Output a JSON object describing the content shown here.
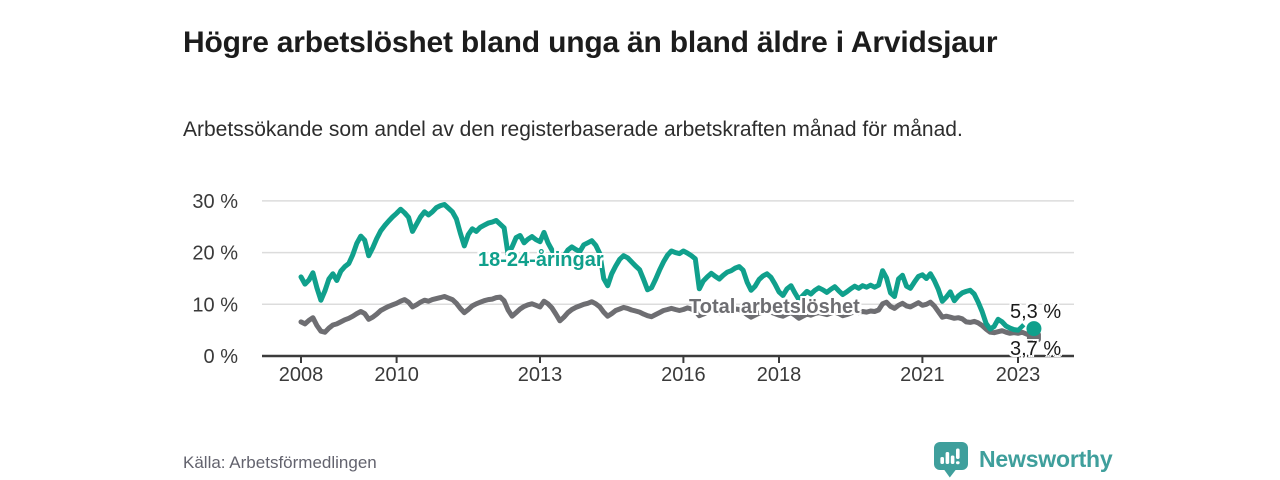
{
  "header": {
    "title": "Högre arbetslöshet bland unga än bland äldre i Arvidsjaur",
    "subtitle": "Arbetssökande som andel av den registerbaserade arbetskraften månad för månad."
  },
  "footer": {
    "source": "Källa: Arbetsförmedlingen",
    "brand": "Newsworthy"
  },
  "colors": {
    "young_line": "#10a08c",
    "total_line": "#6e6e72",
    "grid": "#dcdcdc",
    "axis": "#3b3b3b",
    "axis_text": "#3a3a3a",
    "title_text": "#1c1c1c",
    "brand_teal": "#3f9f9c"
  },
  "chart_data": {
    "type": "line",
    "title": "Högre arbetslöshet bland unga än bland äldre i Arvidsjaur",
    "subtitle": "Arbetssökande som andel av den registerbaserade arbetskraften månad för månad.",
    "xlabel": "",
    "ylabel": "",
    "x_start_year": 2008,
    "x_step_months": 1,
    "x_ticks": [
      2008,
      2010,
      2013,
      2016,
      2018,
      2021,
      2023
    ],
    "y_ticks": [
      0,
      10,
      20,
      30
    ],
    "y_tick_labels": [
      "0 %",
      "10 %",
      "20 %",
      "30 %"
    ],
    "ylim": [
      0,
      32
    ],
    "grid": true,
    "legend_position": "inline-labels",
    "series": [
      {
        "name": "18-24-åringar",
        "color": "#10a08c",
        "end_label": "5,3 %",
        "end_value": 5.3,
        "marker": "circle",
        "dash_tail_segments": 4,
        "values": [
          15.3,
          13.9,
          14.7,
          16.1,
          13.2,
          10.8,
          12.6,
          14.9,
          15.9,
          14.6,
          16.4,
          17.3,
          17.9,
          19.6,
          21.8,
          23.2,
          22.4,
          19.4,
          20.9,
          22.7,
          24.2,
          25.2,
          26.1,
          26.9,
          27.6,
          28.4,
          27.7,
          26.8,
          24.1,
          25.5,
          26.9,
          27.9,
          27.3,
          27.9,
          28.7,
          29.1,
          29.3,
          28.6,
          27.9,
          26.5,
          23.8,
          21.3,
          23.5,
          24.6,
          24.1,
          24.9,
          25.3,
          25.7,
          25.9,
          26.2,
          25.5,
          24.8,
          19.6,
          21.1,
          22.9,
          23.3,
          21.9,
          22.6,
          23.1,
          22.5,
          22.1,
          23.9,
          21.9,
          20.5,
          19.2,
          17.8,
          19.3,
          20.5,
          21.1,
          20.6,
          20.2,
          21.5,
          21.9,
          22.3,
          21.4,
          19.8,
          15.0,
          13.6,
          15.9,
          17.4,
          18.7,
          19.4,
          19.0,
          18.2,
          17.4,
          16.7,
          14.8,
          12.8,
          13.2,
          14.8,
          16.6,
          18.2,
          19.5,
          20.3,
          20.0,
          19.8,
          20.3,
          19.9,
          19.4,
          18.8,
          13.0,
          14.5,
          15.3,
          16.0,
          15.4,
          14.9,
          15.6,
          16.2,
          16.5,
          17.0,
          17.3,
          16.6,
          14.3,
          12.7,
          13.5,
          14.8,
          15.5,
          15.9,
          15.2,
          13.9,
          12.4,
          11.7,
          13.0,
          13.6,
          12.2,
          10.9,
          11.7,
          12.5,
          12.0,
          12.7,
          13.2,
          12.8,
          12.3,
          12.9,
          13.4,
          12.6,
          11.9,
          12.4,
          13.0,
          13.5,
          13.1,
          13.6,
          13.3,
          13.7,
          13.3,
          13.7,
          16.5,
          15.1,
          12.2,
          11.5,
          14.9,
          15.6,
          13.5,
          13.1,
          14.3,
          15.4,
          15.7,
          15.0,
          15.9,
          14.6,
          12.9,
          10.6,
          11.4,
          12.4,
          10.7,
          11.6,
          12.2,
          12.5,
          12.7,
          12.0,
          10.4,
          8.6,
          6.3,
          5.2,
          5.7,
          7.1,
          6.6,
          5.8,
          5.4,
          5.1,
          5.0,
          5.7,
          6.5,
          6.1,
          5.3
        ]
      },
      {
        "name": "Total arbetslöshet",
        "color": "#6e6e72",
        "end_label": "3,7 %",
        "end_value": 3.7,
        "marker": "square",
        "dash_tail_segments": 0,
        "values": [
          6.6,
          6.2,
          6.9,
          7.4,
          5.9,
          4.8,
          4.6,
          5.4,
          6.0,
          6.2,
          6.6,
          7.0,
          7.3,
          7.7,
          8.2,
          8.6,
          8.2,
          7.1,
          7.5,
          8.1,
          8.8,
          9.2,
          9.6,
          9.9,
          10.2,
          10.6,
          10.9,
          10.4,
          9.5,
          9.9,
          10.4,
          10.8,
          10.6,
          10.9,
          11.1,
          11.3,
          11.5,
          11.2,
          10.9,
          10.2,
          9.2,
          8.4,
          9.0,
          9.7,
          10.1,
          10.4,
          10.7,
          10.9,
          11.0,
          11.3,
          11.4,
          10.7,
          8.9,
          7.7,
          8.4,
          9.1,
          9.6,
          9.9,
          10.1,
          9.8,
          9.5,
          10.6,
          10.1,
          9.3,
          8.1,
          6.8,
          7.5,
          8.4,
          9.0,
          9.4,
          9.7,
          10.0,
          10.2,
          10.5,
          10.1,
          9.5,
          8.5,
          7.7,
          8.2,
          8.8,
          9.1,
          9.4,
          9.2,
          8.9,
          8.7,
          8.5,
          8.1,
          7.8,
          7.6,
          8.0,
          8.4,
          8.8,
          9.0,
          9.2,
          9.0,
          8.8,
          9.0,
          9.3,
          9.1,
          8.7,
          7.8,
          8.1,
          8.5,
          8.8,
          8.6,
          8.4,
          8.6,
          8.8,
          8.9,
          9.1,
          9.0,
          8.6,
          8.0,
          7.5,
          7.9,
          8.3,
          8.5,
          8.7,
          8.5,
          8.2,
          7.9,
          7.7,
          8.1,
          8.4,
          7.9,
          7.3,
          7.7,
          8.1,
          7.9,
          8.2,
          8.4,
          8.2,
          8.0,
          8.3,
          8.5,
          8.2,
          7.8,
          8.0,
          8.3,
          8.6,
          8.4,
          8.6,
          8.5,
          8.7,
          8.6,
          8.9,
          10.1,
          10.4,
          9.6,
          9.2,
          9.8,
          10.2,
          9.7,
          9.5,
          9.9,
          10.3,
          9.8,
          10.0,
          10.4,
          9.7,
          8.6,
          7.5,
          7.7,
          7.5,
          7.3,
          7.4,
          7.2,
          6.6,
          6.5,
          6.7,
          6.4,
          5.9,
          5.2,
          4.6,
          4.5,
          4.7,
          4.9,
          4.6,
          4.4,
          4.5,
          4.4,
          4.6,
          4.3,
          4.0,
          3.7
        ]
      }
    ]
  }
}
